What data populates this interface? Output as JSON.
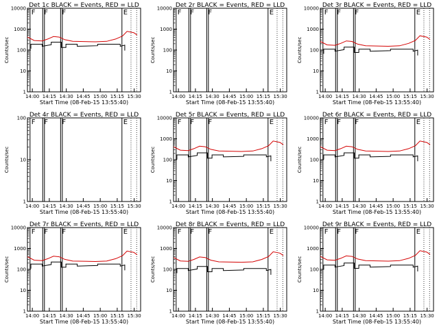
{
  "chart_data": [
    {
      "type": "line",
      "title": "Det 1c BLACK = Events, RED = LLD",
      "xlabel": "Start Time (08-Feb-15 13:55:40)",
      "ylabel": "Counts/sec",
      "yscale": "log",
      "ylim": [
        1,
        10000
      ],
      "xlim": [
        0,
        100
      ],
      "x_ticks": [
        "14:00",
        "14:15",
        "14:30",
        "14:45",
        "15:00",
        "15:15",
        "15:30"
      ],
      "y_ticks": [
        "1",
        "10",
        "100",
        "1000",
        "10000"
      ],
      "markers": [
        "F",
        "F",
        "F",
        "E"
      ],
      "xplot_mode": "black_red",
      "series": [
        {
          "name": "Events",
          "color": "#000000",
          "seg": [
            [
              0,
              180
            ],
            [
              6,
              180
            ],
            [
              12,
              180
            ],
            [
              20,
              180
            ],
            [
              22,
              215
            ],
            [
              27,
              215
            ]
          ]
        },
        {
          "name": "LLD",
          "color": "#d40000",
          "seg": [
            [
              0,
              400
            ],
            [
              100,
              700
            ]
          ]
        }
      ]
    },
    {
      "type": "line",
      "title": "Det 2r BLACK = Events, RED = LLD",
      "xlabel": "Start Time (08-Feb-15 13:55:40)",
      "ylabel": "Counts/sec",
      "yscale": "log",
      "ylim": [
        1,
        10000
      ],
      "x_ticks": [
        "14:00",
        "14:15",
        "14:30",
        "14:45",
        "15:00",
        "15:15",
        "15:30"
      ],
      "y_ticks": [
        "1",
        "10",
        "100",
        "1000",
        "10000"
      ],
      "markers": [
        "F",
        "F",
        "F",
        "E"
      ],
      "series": []
    },
    {
      "type": "line",
      "title": "Det 3r BLACK = Events, RED = LLD",
      "xlabel": "Start Time (08-Feb-15 13:55:40)",
      "ylabel": "Counts/sec",
      "yscale": "log",
      "ylim": [
        1,
        10000
      ],
      "x_ticks": [
        "14:00",
        "14:15",
        "14:30",
        "14:45",
        "15:00",
        "15:15",
        "15:30"
      ],
      "y_ticks": [
        "1",
        "10",
        "100",
        "1000",
        "10000"
      ],
      "markers": [
        "F",
        "F",
        "F",
        "E"
      ],
      "series": [
        {
          "name": "Events",
          "color": "#000000"
        },
        {
          "name": "LLD",
          "color": "#d40000"
        }
      ]
    },
    {
      "type": "line",
      "title": "Det 4r BLACK = Events, RED = LLD",
      "xlabel": "Start Time (08-Feb-15 13:55:40)",
      "ylabel": "Counts/sec",
      "yscale": "log",
      "ylim": [
        1,
        100
      ],
      "x_ticks": [
        "14:00",
        "14:15",
        "14:30",
        "14:45",
        "15:00",
        "15:15",
        "15:30"
      ],
      "y_ticks": [
        "1",
        "10",
        "100"
      ],
      "markers": [
        "F",
        "F",
        "F",
        "E"
      ],
      "series": []
    },
    {
      "type": "line",
      "title": "Det 5r BLACK = Events, RED = LLD",
      "xlabel": "Start Time (08-Feb-15 13:55:40)",
      "ylabel": "Counts/sec",
      "yscale": "log",
      "ylim": [
        1,
        10000
      ],
      "x_ticks": [
        "14:00",
        "14:15",
        "14:30",
        "14:45",
        "15:00",
        "15:15",
        "15:30"
      ],
      "y_ticks": [
        "1",
        "10",
        "100",
        "1000",
        "10000"
      ],
      "markers": [
        "F",
        "F",
        "F",
        "E"
      ],
      "series": [
        {
          "name": "Events",
          "color": "#000000"
        },
        {
          "name": "LLD",
          "color": "#d40000"
        }
      ]
    },
    {
      "type": "line",
      "title": "Det 6r BLACK = Events, RED = LLD",
      "xlabel": "Start Time (08-Feb-15 13:55:40)",
      "ylabel": "Counts/sec",
      "yscale": "log",
      "ylim": [
        1,
        10000
      ],
      "x_ticks": [
        "14:00",
        "14:15",
        "14:30",
        "14:45",
        "15:00",
        "15:15",
        "15:30"
      ],
      "y_ticks": [
        "1",
        "10",
        "100",
        "1000",
        "10000"
      ],
      "markers": [
        "F",
        "F",
        "F",
        "E"
      ],
      "series": [
        {
          "name": "Events",
          "color": "#000000"
        },
        {
          "name": "LLD",
          "color": "#d40000"
        }
      ]
    },
    {
      "type": "line",
      "title": "Det 7r BLACK = Events, RED = LLD",
      "xlabel": "Start Time (08-Feb-15 13:55:40)",
      "ylabel": "Counts/sec",
      "yscale": "log",
      "ylim": [
        1,
        10000
      ],
      "x_ticks": [
        "14:00",
        "14:15",
        "14:30",
        "14:45",
        "15:00",
        "15:15",
        "15:30"
      ],
      "y_ticks": [
        "1",
        "10",
        "100",
        "1000",
        "10000"
      ],
      "markers": [
        "F",
        "F",
        "F",
        "E"
      ],
      "series": [
        {
          "name": "Events",
          "color": "#000000"
        },
        {
          "name": "LLD",
          "color": "#d40000"
        }
      ]
    },
    {
      "type": "line",
      "title": "Det 8r BLACK = Events, RED = LLD",
      "xlabel": "Start Time (08-Feb-15 13:55:40)",
      "ylabel": "Counts/sec",
      "yscale": "log",
      "ylim": [
        1,
        10000
      ],
      "x_ticks": [
        "14:00",
        "14:15",
        "14:30",
        "14:45",
        "15:00",
        "15:15",
        "15:30"
      ],
      "y_ticks": [
        "1",
        "10",
        "100",
        "1000",
        "10000"
      ],
      "markers": [
        "F",
        "F",
        "F",
        "E"
      ],
      "series": [
        {
          "name": "Events",
          "color": "#000000"
        },
        {
          "name": "LLD",
          "color": "#d40000"
        }
      ]
    },
    {
      "type": "line",
      "title": "Det 9r BLACK = Events, RED = LLD",
      "xlabel": "Start Time (08-Feb-15 13:55:40)",
      "ylabel": "Counts/sec",
      "yscale": "log",
      "ylim": [
        1,
        10000
      ],
      "x_ticks": [
        "14:00",
        "14:15",
        "14:30",
        "14:45",
        "15:00",
        "15:15",
        "15:30"
      ],
      "y_ticks": [
        "1",
        "10",
        "100",
        "1000",
        "10000"
      ],
      "markers": [
        "F",
        "F",
        "F",
        "E"
      ],
      "series": [
        {
          "name": "Events",
          "color": "#000000"
        },
        {
          "name": "LLD",
          "color": "#d40000"
        }
      ]
    }
  ]
}
